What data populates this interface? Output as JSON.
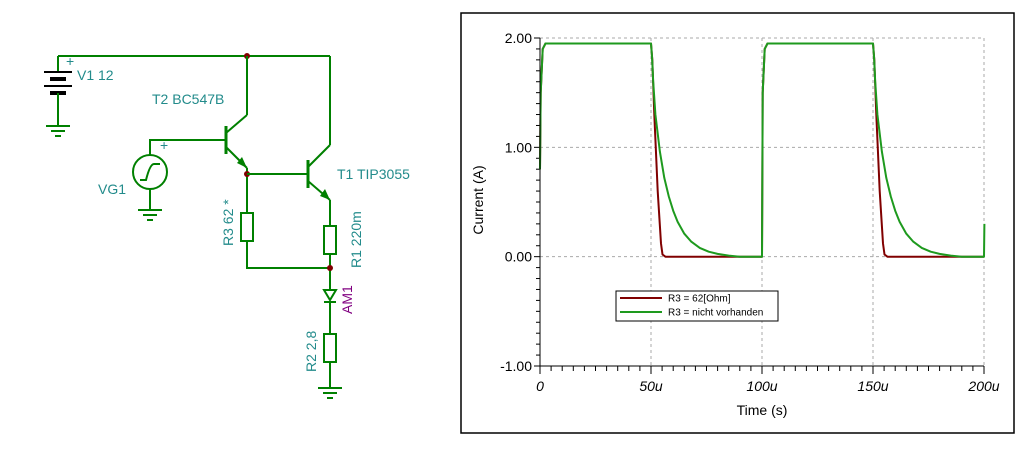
{
  "circuit": {
    "colors": {
      "wire": "#008000",
      "label": "#228b8b",
      "ammeter_label": "#800080",
      "black": "#000000"
    },
    "labels": {
      "v1": "V1 12",
      "t2": "T2 BC547B",
      "vg1": "VG1",
      "t1": "T1 TIP3055",
      "r3": "R3 62 *",
      "r1": "R1 220m",
      "am1": "AM1",
      "r2": "R2 2,8"
    },
    "symbols": {
      "plus": "+"
    }
  },
  "chart_data": {
    "type": "line",
    "xlabel": "Time (s)",
    "ylabel": "Current (A)",
    "xlim": [
      0,
      200
    ],
    "ylim": [
      -1,
      2
    ],
    "x_unit_suffix": "u",
    "x_ticks": [
      0,
      50,
      100,
      150,
      200
    ],
    "x_tick_labels": [
      "0",
      "50u",
      "100u",
      "150u",
      "200u"
    ],
    "y_ticks": [
      -1,
      0,
      1,
      2
    ],
    "y_tick_labels": [
      "-1.00",
      "0.00",
      "1.00",
      "2.00"
    ],
    "grid": true,
    "legend_placement": "lower-left",
    "series": [
      {
        "name": "R3 = 62[Ohm]",
        "color": "#800000",
        "x": [
          0,
          0.3,
          1.2,
          2.5,
          50,
          50.6,
          51.5,
          53,
          54.5,
          55.2,
          56.5,
          60,
          100,
          100.3,
          101.2,
          102.5,
          150,
          150.6,
          151.5,
          153,
          154.5,
          155.2,
          156.5,
          160,
          200
        ],
        "y": [
          0.8,
          1.5,
          1.9,
          1.95,
          1.95,
          1.8,
          1.3,
          0.6,
          0.12,
          0.02,
          0,
          0,
          0,
          1.5,
          1.9,
          1.95,
          1.95,
          1.8,
          1.3,
          0.6,
          0.12,
          0.02,
          0,
          0,
          0
        ]
      },
      {
        "name": "R3 = nicht vorhanden",
        "color": "#1e9a1e",
        "x": [
          0,
          0.3,
          1.2,
          2.5,
          50,
          50.5,
          51,
          52,
          54,
          56,
          58,
          60,
          62,
          65,
          68,
          72,
          76,
          80,
          85,
          90,
          100,
          100.3,
          101.2,
          102.5,
          150,
          150.5,
          151,
          152,
          154,
          156,
          158,
          160,
          162,
          165,
          168,
          172,
          176,
          180,
          185,
          190,
          200,
          200.2
        ],
        "y": [
          0.8,
          1.5,
          1.9,
          1.95,
          1.95,
          1.82,
          1.6,
          1.3,
          0.96,
          0.72,
          0.55,
          0.42,
          0.32,
          0.21,
          0.14,
          0.08,
          0.045,
          0.025,
          0.01,
          0,
          0,
          1.5,
          1.9,
          1.95,
          1.95,
          1.82,
          1.6,
          1.3,
          0.96,
          0.72,
          0.55,
          0.42,
          0.32,
          0.21,
          0.14,
          0.08,
          0.045,
          0.025,
          0.01,
          0,
          0,
          0.3
        ]
      }
    ]
  }
}
